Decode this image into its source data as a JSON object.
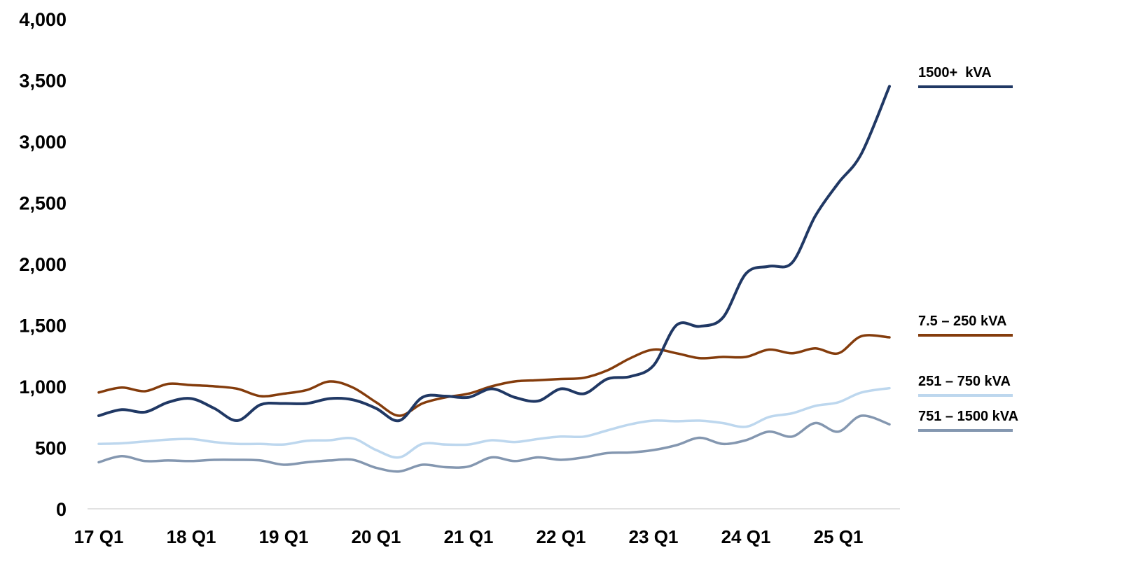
{
  "chart_data": {
    "type": "line",
    "title": "",
    "xlabel": "",
    "ylabel": "",
    "ylim": [
      0,
      4000
    ],
    "yticks": [
      "0",
      "500",
      "1,000",
      "1,500",
      "2,000",
      "2,500",
      "3,000",
      "3,500",
      "4,000"
    ],
    "ytick_values": [
      0,
      500,
      1000,
      1500,
      2000,
      2500,
      3000,
      3500,
      4000
    ],
    "xtick_labels": [
      "17 Q1",
      "18 Q1",
      "19 Q1",
      "20 Q1",
      "21 Q1",
      "22 Q1",
      "23 Q1",
      "24 Q1",
      "25 Q1"
    ],
    "x": [
      "17 Q1",
      "17 Q2",
      "17 Q3",
      "17 Q4",
      "18 Q1",
      "18 Q2",
      "18 Q3",
      "18 Q4",
      "19 Q1",
      "19 Q2",
      "19 Q3",
      "19 Q4",
      "20 Q1",
      "20 Q2",
      "20 Q3",
      "20 Q4",
      "21 Q1",
      "21 Q2",
      "21 Q3",
      "21 Q4",
      "22 Q1",
      "22 Q2",
      "22 Q3",
      "22 Q4",
      "23 Q1",
      "23 Q2",
      "23 Q3",
      "23 Q4",
      "24 Q1",
      "24 Q2",
      "24 Q3",
      "24 Q4",
      "25 Q1",
      "25 Q2",
      "25 Q3"
    ],
    "grid": false,
    "legend_placement": "right",
    "series": [
      {
        "name": "1500+  kVA",
        "color": "#203864",
        "values": [
          760,
          810,
          790,
          870,
          900,
          820,
          720,
          850,
          860,
          860,
          900,
          890,
          820,
          720,
          910,
          920,
          910,
          980,
          910,
          880,
          980,
          940,
          1060,
          1080,
          1170,
          1500,
          1490,
          1560,
          1920,
          1980,
          2010,
          2390,
          2660,
          2900,
          3450
        ]
      },
      {
        "name": "7.5 – 250 kVA",
        "color": "#843C0C",
        "values": [
          950,
          990,
          960,
          1020,
          1010,
          1000,
          980,
          920,
          940,
          970,
          1040,
          990,
          870,
          760,
          860,
          910,
          940,
          1000,
          1040,
          1050,
          1060,
          1070,
          1130,
          1230,
          1300,
          1270,
          1230,
          1240,
          1240,
          1300,
          1270,
          1310,
          1270,
          1410,
          1400
        ]
      },
      {
        "name": "251 – 750 kVA",
        "color": "#BDD7EE",
        "values": [
          530,
          535,
          550,
          565,
          570,
          545,
          530,
          530,
          525,
          555,
          560,
          575,
          480,
          420,
          530,
          525,
          525,
          560,
          545,
          570,
          590,
          590,
          640,
          690,
          720,
          715,
          720,
          700,
          670,
          750,
          780,
          840,
          870,
          950,
          985
        ]
      },
      {
        "name": "751 – 1500 kVA",
        "color": "#8497B0",
        "values": [
          380,
          430,
          390,
          395,
          390,
          400,
          400,
          395,
          360,
          380,
          395,
          400,
          335,
          305,
          360,
          340,
          345,
          420,
          390,
          420,
          400,
          420,
          455,
          460,
          480,
          520,
          580,
          530,
          560,
          630,
          590,
          700,
          630,
          760,
          690
        ]
      }
    ]
  }
}
